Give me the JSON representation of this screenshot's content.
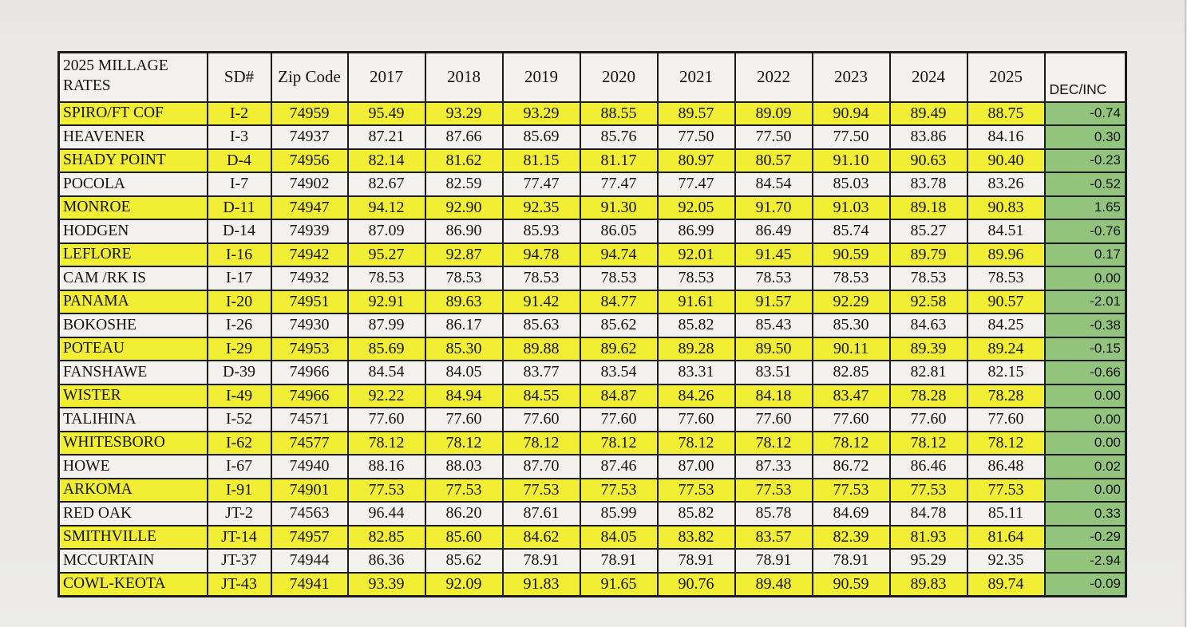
{
  "header": {
    "title": "2025 MILLAGE RATES",
    "sd_label": "SD#",
    "zip_label": "Zip Code",
    "years": [
      "2017",
      "2018",
      "2019",
      "2020",
      "2021",
      "2022",
      "2023",
      "2024",
      "2025"
    ],
    "decinc_label": "DEC/INC"
  },
  "colors": {
    "highlight_yellow": "#f2ee33",
    "decinc_green": "#92c47d",
    "row_white": "#f4f2ee",
    "paper": "#eae9e7",
    "border": "#1b1b1b"
  },
  "rows": [
    {
      "name": "SPIRO/FT COF",
      "sd": "I-2",
      "zip": "74959",
      "rates": [
        "95.49",
        "93.29",
        "93.29",
        "88.55",
        "89.57",
        "89.09",
        "90.94",
        "89.49",
        "88.75"
      ],
      "dec_inc": "-0.74",
      "highlighted": true
    },
    {
      "name": "HEAVENER",
      "sd": "I-3",
      "zip": "74937",
      "rates": [
        "87.21",
        "87.66",
        "85.69",
        "85.76",
        "77.50",
        "77.50",
        "77.50",
        "83.86",
        "84.16"
      ],
      "dec_inc": "0.30",
      "highlighted": false
    },
    {
      "name": "SHADY POINT",
      "sd": "D-4",
      "zip": "74956",
      "rates": [
        "82.14",
        "81.62",
        "81.15",
        "81.17",
        "80.97",
        "80.57",
        "91.10",
        "90.63",
        "90.40"
      ],
      "dec_inc": "-0.23",
      "highlighted": true
    },
    {
      "name": "POCOLA",
      "sd": "I-7",
      "zip": "74902",
      "rates": [
        "82.67",
        "82.59",
        "77.47",
        "77.47",
        "77.47",
        "84.54",
        "85.03",
        "83.78",
        "83.26"
      ],
      "dec_inc": "-0.52",
      "highlighted": false
    },
    {
      "name": "MONROE",
      "sd": "D-11",
      "zip": "74947",
      "rates": [
        "94.12",
        "92.90",
        "92.35",
        "91.30",
        "92.05",
        "91.70",
        "91.03",
        "89.18",
        "90.83"
      ],
      "dec_inc": "1.65",
      "highlighted": true
    },
    {
      "name": "HODGEN",
      "sd": "D-14",
      "zip": "74939",
      "rates": [
        "87.09",
        "86.90",
        "85.93",
        "86.05",
        "86.99",
        "86.49",
        "85.74",
        "85.27",
        "84.51"
      ],
      "dec_inc": "-0.76",
      "highlighted": false
    },
    {
      "name": "LEFLORE",
      "sd": "I-16",
      "zip": "74942",
      "rates": [
        "95.27",
        "92.87",
        "94.78",
        "94.74",
        "92.01",
        "91.45",
        "90.59",
        "89.79",
        "89.96"
      ],
      "dec_inc": "0.17",
      "highlighted": true
    },
    {
      "name": "CAM /RK IS",
      "sd": "I-17",
      "zip": "74932",
      "rates": [
        "78.53",
        "78.53",
        "78.53",
        "78.53",
        "78.53",
        "78.53",
        "78.53",
        "78.53",
        "78.53"
      ],
      "dec_inc": "0.00",
      "highlighted": false
    },
    {
      "name": "PANAMA",
      "sd": "I-20",
      "zip": "74951",
      "rates": [
        "92.91",
        "89.63",
        "91.42",
        "84.77",
        "91.61",
        "91.57",
        "92.29",
        "92.58",
        "90.57"
      ],
      "dec_inc": "-2.01",
      "highlighted": true
    },
    {
      "name": "BOKOSHE",
      "sd": "I-26",
      "zip": "74930",
      "rates": [
        "87.99",
        "86.17",
        "85.63",
        "85.62",
        "85.82",
        "85.43",
        "85.30",
        "84.63",
        "84.25"
      ],
      "dec_inc": "-0.38",
      "highlighted": false
    },
    {
      "name": "POTEAU",
      "sd": "I-29",
      "zip": "74953",
      "rates": [
        "85.69",
        "85.30",
        "89.88",
        "89.62",
        "89.28",
        "89.50",
        "90.11",
        "89.39",
        "89.24"
      ],
      "dec_inc": "-0.15",
      "highlighted": true
    },
    {
      "name": "FANSHAWE",
      "sd": "D-39",
      "zip": "74966",
      "rates": [
        "84.54",
        "84.05",
        "83.77",
        "83.54",
        "83.31",
        "83.51",
        "82.85",
        "82.81",
        "82.15"
      ],
      "dec_inc": "-0.66",
      "highlighted": false
    },
    {
      "name": "WISTER",
      "sd": "I-49",
      "zip": "74966",
      "rates": [
        "92.22",
        "84.94",
        "84.55",
        "84.87",
        "84.26",
        "84.18",
        "83.47",
        "78.28",
        "78.28"
      ],
      "dec_inc": "0.00",
      "highlighted": true
    },
    {
      "name": "TALIHINA",
      "sd": "I-52",
      "zip": "74571",
      "rates": [
        "77.60",
        "77.60",
        "77.60",
        "77.60",
        "77.60",
        "77.60",
        "77.60",
        "77.60",
        "77.60"
      ],
      "dec_inc": "0.00",
      "highlighted": false
    },
    {
      "name": "WHITESBORO",
      "sd": "I-62",
      "zip": "74577",
      "rates": [
        "78.12",
        "78.12",
        "78.12",
        "78.12",
        "78.12",
        "78.12",
        "78.12",
        "78.12",
        "78.12"
      ],
      "dec_inc": "0.00",
      "highlighted": true
    },
    {
      "name": "HOWE",
      "sd": "I-67",
      "zip": "74940",
      "rates": [
        "88.16",
        "88.03",
        "87.70",
        "87.46",
        "87.00",
        "87.33",
        "86.72",
        "86.46",
        "86.48"
      ],
      "dec_inc": "0.02",
      "highlighted": false
    },
    {
      "name": "ARKOMA",
      "sd": "I-91",
      "zip": "74901",
      "rates": [
        "77.53",
        "77.53",
        "77.53",
        "77.53",
        "77.53",
        "77.53",
        "77.53",
        "77.53",
        "77.53"
      ],
      "dec_inc": "0.00",
      "highlighted": true
    },
    {
      "name": "RED OAK",
      "sd": "JT-2",
      "zip": "74563",
      "rates": [
        "96.44",
        "86.20",
        "87.61",
        "85.99",
        "85.82",
        "85.78",
        "84.69",
        "84.78",
        "85.11"
      ],
      "dec_inc": "0.33",
      "highlighted": false
    },
    {
      "name": "SMITHVILLE",
      "sd": "JT-14",
      "zip": "74957",
      "rates": [
        "82.85",
        "85.60",
        "84.62",
        "84.05",
        "83.82",
        "83.57",
        "82.39",
        "81.93",
        "81.64"
      ],
      "dec_inc": "-0.29",
      "highlighted": true
    },
    {
      "name": "MCCURTAIN",
      "sd": "JT-37",
      "zip": "74944",
      "rates": [
        "86.36",
        "85.62",
        "78.91",
        "78.91",
        "78.91",
        "78.91",
        "78.91",
        "95.29",
        "92.35"
      ],
      "dec_inc": "-2.94",
      "highlighted": false
    },
    {
      "name": "COWL-KEOTA",
      "sd": "JT-43",
      "zip": "74941",
      "rates": [
        "93.39",
        "92.09",
        "91.83",
        "91.65",
        "90.76",
        "89.48",
        "90.59",
        "89.83",
        "89.74"
      ],
      "dec_inc": "-0.09",
      "highlighted": true
    }
  ]
}
